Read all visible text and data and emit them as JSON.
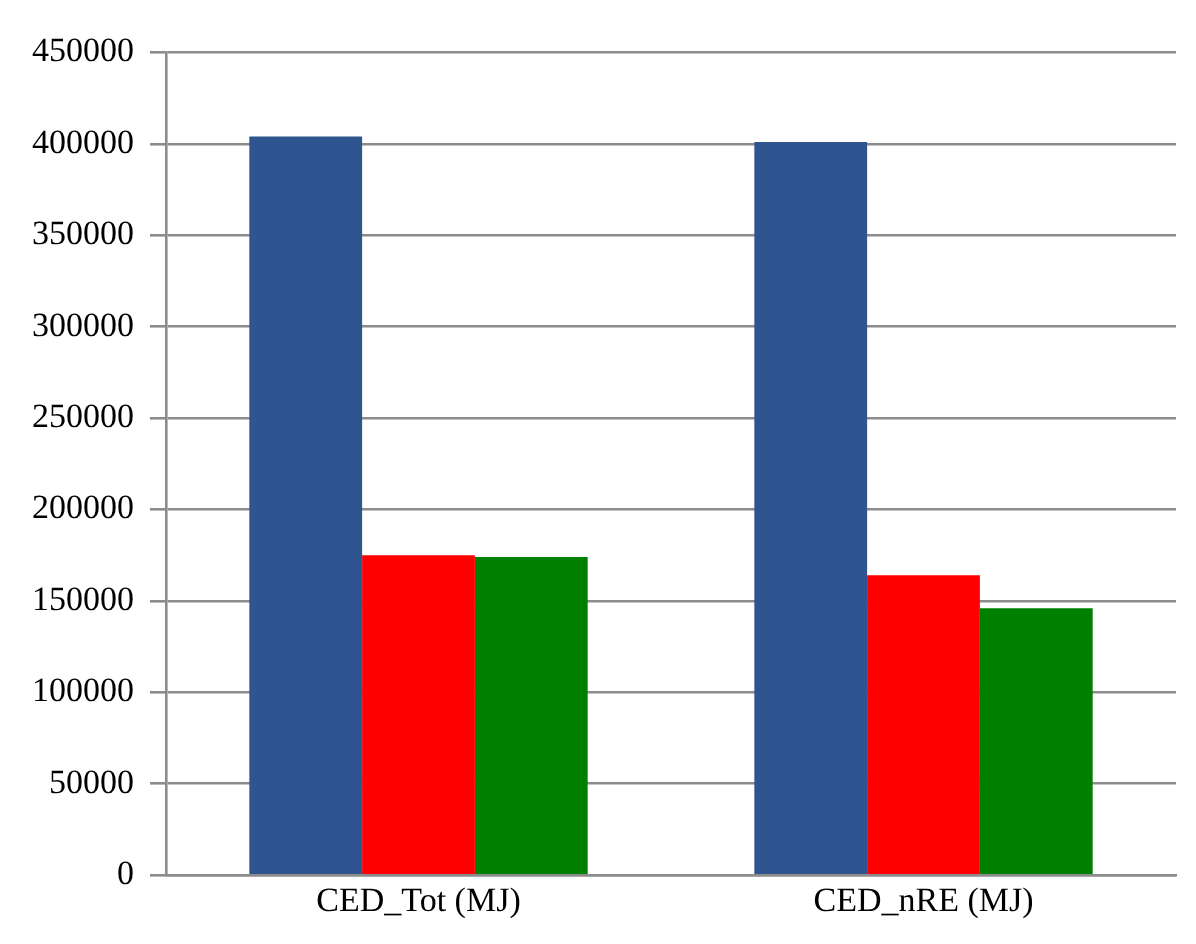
{
  "chart_data": {
    "type": "bar",
    "categories": [
      "CED_Tot (MJ)",
      "CED_nRE (MJ)"
    ],
    "series": [
      {
        "color": "#2e5590",
        "values": [
          404000,
          401000
        ]
      },
      {
        "color": "#ff0000",
        "values": [
          175000,
          164000
        ]
      },
      {
        "color": "#008000",
        "values": [
          174000,
          146000
        ]
      }
    ],
    "ylim": [
      0,
      450000
    ],
    "yticks": [
      0,
      50000,
      100000,
      150000,
      200000,
      250000,
      300000,
      350000,
      400000,
      450000
    ],
    "grid": "y",
    "legend": false
  }
}
